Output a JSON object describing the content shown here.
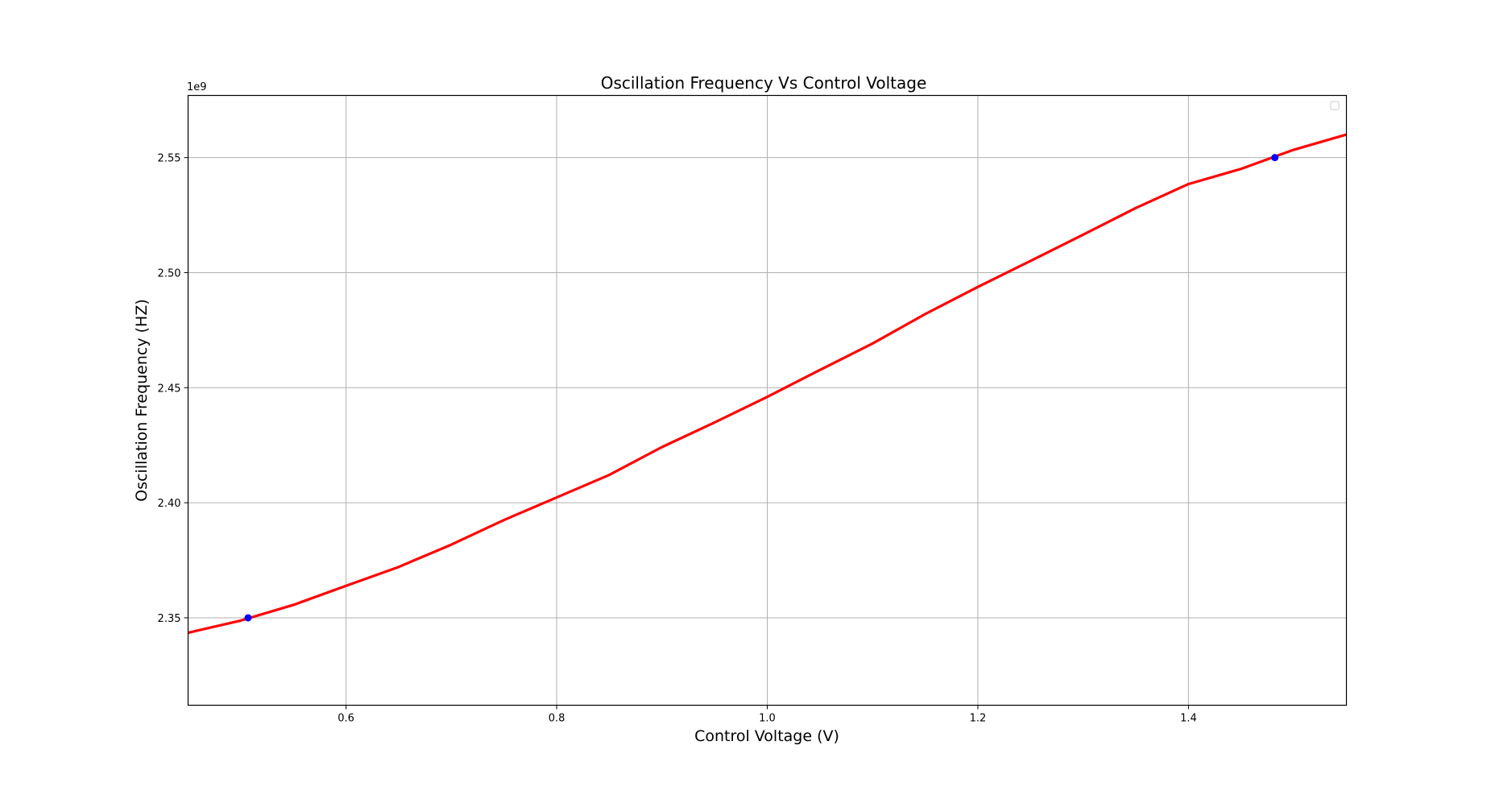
{
  "chart_data": {
    "type": "line",
    "title": "Oscillation Frequency Vs Control Voltage",
    "xlabel": "Control Voltage (V)",
    "ylabel": "Oscillation Frequency (HZ)",
    "y_offset_label": "1e9",
    "xlim": [
      0.45,
      1.55
    ],
    "ylim": [
      2.312,
      2.577
    ],
    "x_ticks": [
      0.6,
      0.8,
      1.0,
      1.2,
      1.4
    ],
    "x_tick_labels": [
      "0.6",
      "0.8",
      "1.0",
      "1.2",
      "1.4"
    ],
    "y_ticks": [
      2.35,
      2.4,
      2.45,
      2.5,
      2.55
    ],
    "y_tick_labels": [
      "2.35",
      "2.40",
      "2.45",
      "2.50",
      "2.55"
    ],
    "grid": true,
    "legend": "top-right (empty)",
    "series": [
      {
        "kind": "line",
        "color": "#ff0000",
        "x": [
          0.45,
          0.5,
          0.55,
          0.6,
          0.65,
          0.7,
          0.75,
          0.8,
          0.85,
          0.9,
          0.95,
          1.0,
          1.05,
          1.1,
          1.15,
          1.2,
          1.25,
          1.3,
          1.35,
          1.4,
          1.45,
          1.5,
          1.55
        ],
        "y": [
          2.3435,
          2.3488,
          2.3556,
          2.3639,
          2.3721,
          2.3818,
          2.3925,
          2.4023,
          2.4121,
          2.4242,
          2.4349,
          2.446,
          2.4577,
          2.4692,
          2.482,
          2.4938,
          2.5051,
          2.5165,
          2.5281,
          2.5385,
          2.5451,
          2.5534,
          2.56
        ]
      },
      {
        "kind": "markers",
        "color": "#0000ff",
        "x": [
          0.507,
          1.482
        ],
        "y": [
          2.35,
          2.55
        ]
      }
    ]
  }
}
